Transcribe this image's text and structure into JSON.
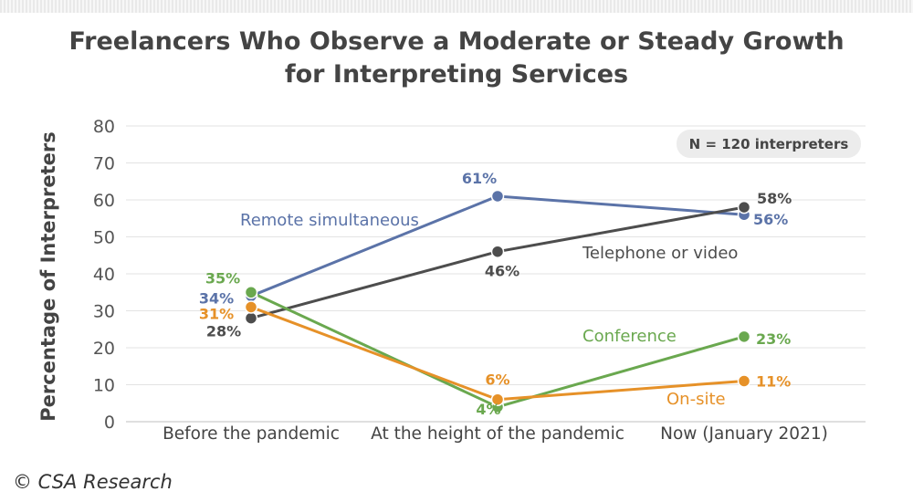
{
  "header": {
    "title_line1": "Freelancers Who Observe a Moderate or Steady Growth",
    "title_line2": "for Interpreting Services"
  },
  "footer": {
    "credit": "© CSA Research"
  },
  "chart_data": {
    "type": "line",
    "title": "Freelancers Who Observe a Moderate or Steady Growth for Interpreting Services",
    "ylabel": "Percentage of Interpreters",
    "xlabel": "",
    "categories": [
      "Before the pandemic",
      "At the height of the pandemic",
      "Now (January 2021)"
    ],
    "ylim": [
      0,
      80
    ],
    "yticks": [
      "0",
      "10",
      "20",
      "30",
      "40",
      "50",
      "60",
      "70",
      "80"
    ],
    "grid": true,
    "annotation": "N = 120 interpreters",
    "series": [
      {
        "name": "Remote simultaneous",
        "color": "#5b73a8",
        "values": [
          34,
          61,
          56
        ],
        "data_labels": [
          "34%",
          "61%",
          "56%"
        ]
      },
      {
        "name": "Telephone or video",
        "color": "#4d4d4d",
        "values": [
          28,
          46,
          58
        ],
        "data_labels": [
          "28%",
          "46%",
          "58%"
        ]
      },
      {
        "name": "Conference",
        "color": "#6aa84f",
        "values": [
          35,
          4,
          23
        ],
        "data_labels": [
          "35%",
          "4%",
          "23%"
        ]
      },
      {
        "name": "On-site",
        "color": "#e69128",
        "values": [
          31,
          6,
          11
        ],
        "data_labels": [
          "31%",
          "6%",
          "11%"
        ]
      }
    ]
  }
}
